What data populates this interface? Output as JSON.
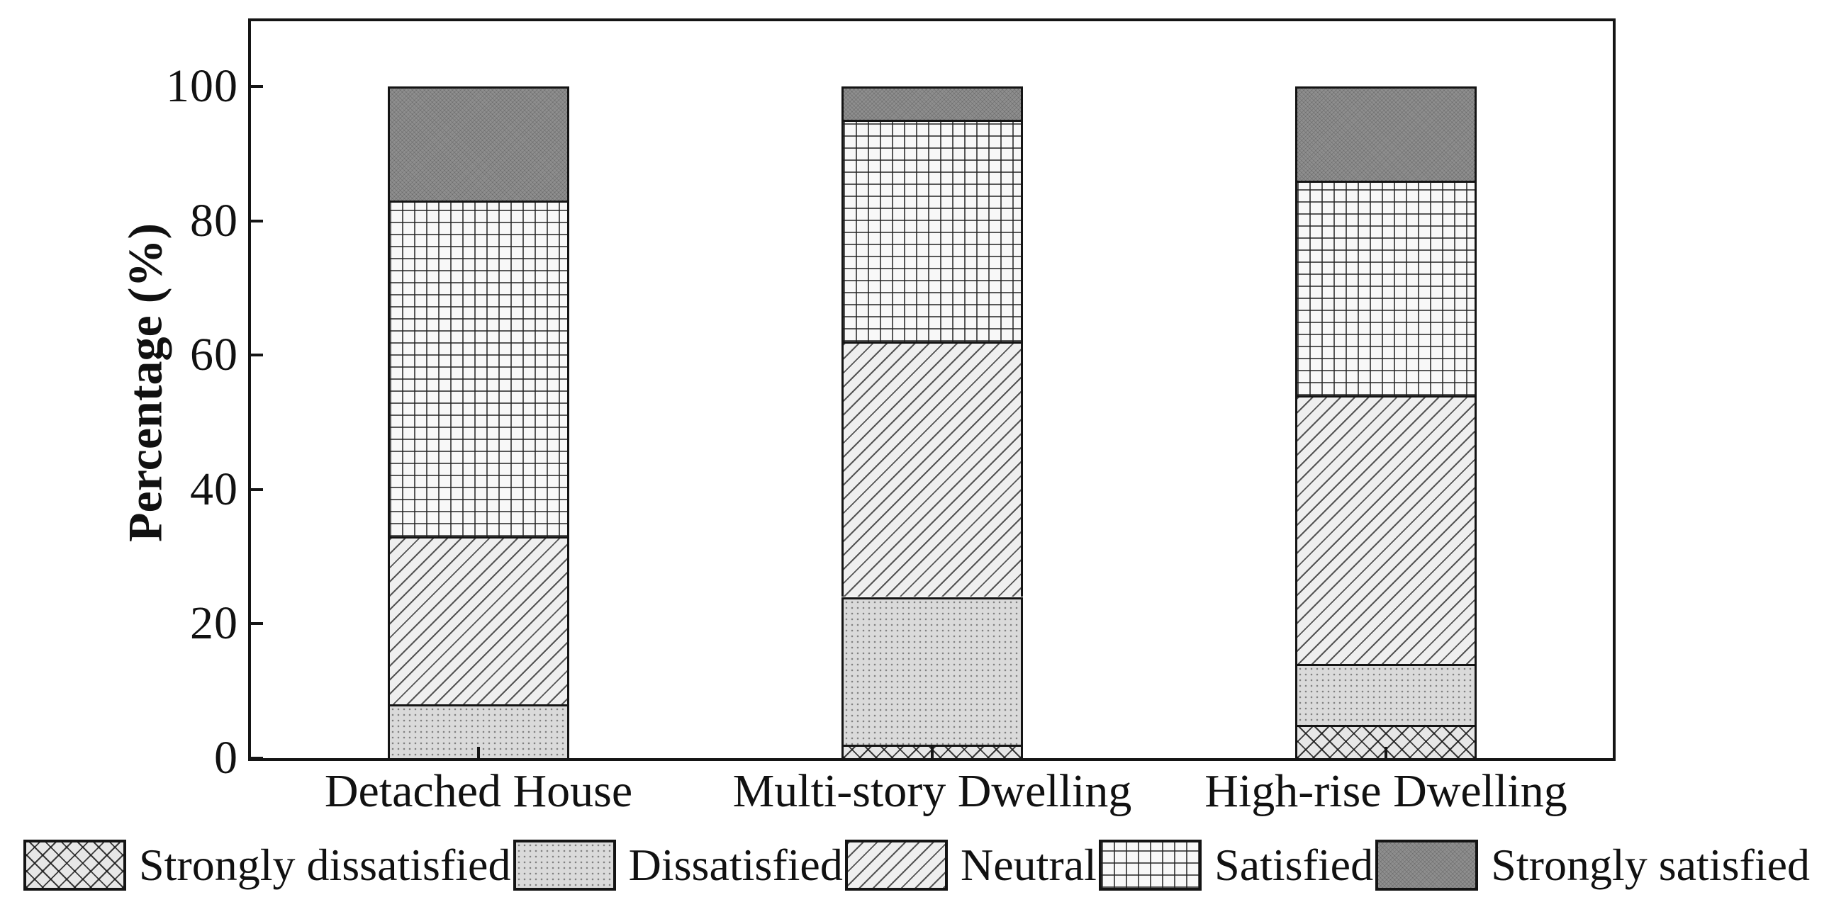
{
  "figure": {
    "background": "#ffffff",
    "frame_color": "#151515",
    "text_color": "#111111"
  },
  "y_axis": {
    "title": "Percentage (%)",
    "tick_labels": [
      "0",
      "20",
      "40",
      "60",
      "80",
      "100"
    ],
    "tick_values": [
      0,
      20,
      40,
      60,
      80,
      100
    ]
  },
  "chart_data": {
    "type": "bar",
    "stacked": true,
    "orientation": "vertical",
    "title": "",
    "xlabel": "",
    "ylabel": "Percentage (%)",
    "ylim": [
      0,
      110
    ],
    "grid": false,
    "legend_position": "bottom",
    "categories": [
      "Detached House",
      "Multi-story Dwelling",
      "High-rise Dwelling"
    ],
    "series": [
      {
        "name": "Strongly dissatisfied",
        "pattern": "crosshatch",
        "values": [
          0,
          2,
          5
        ]
      },
      {
        "name": "Dissatisfied",
        "pattern": "dots",
        "values": [
          8,
          22,
          9
        ]
      },
      {
        "name": "Neutral",
        "pattern": "diagonal",
        "values": [
          25,
          38,
          40
        ]
      },
      {
        "name": "Satisfied",
        "pattern": "grid",
        "values": [
          50,
          33,
          32
        ]
      },
      {
        "name": "Strongly satisfied",
        "pattern": "solid",
        "values": [
          17,
          5,
          14
        ]
      }
    ]
  },
  "legend": {
    "items": [
      {
        "label": "Strongly dissatisfied",
        "pattern": "crosshatch"
      },
      {
        "label": "Dissatisfied",
        "pattern": "dots"
      },
      {
        "label": "Neutral",
        "pattern": "diagonal"
      },
      {
        "label": "Satisfied",
        "pattern": "grid"
      },
      {
        "label": "Strongly satisfied",
        "pattern": "solid"
      }
    ]
  },
  "patterns": {
    "crosshatch": "diagonal-cross-hatch",
    "dots": "light-gray-dotted",
    "diagonal": "diagonal-lines",
    "grid": "square-grid-hatch",
    "solid": "dark-gray-fill"
  }
}
